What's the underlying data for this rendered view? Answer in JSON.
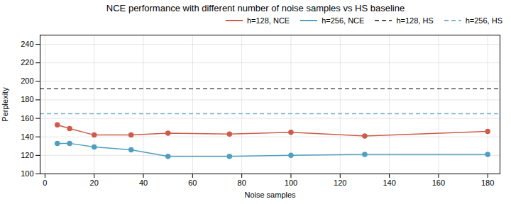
{
  "chart_data": {
    "type": "line",
    "title": "NCE performance with different number of noise samples vs HS baseline",
    "xlabel": "Noise samples",
    "ylabel": "Perplexity",
    "xlim": [
      -2,
      185
    ],
    "ylim": [
      100,
      250
    ],
    "xticks": [
      0,
      20,
      40,
      60,
      80,
      100,
      120,
      140,
      160,
      180
    ],
    "yticks": [
      100,
      120,
      140,
      160,
      180,
      200,
      220,
      240
    ],
    "x": [
      5,
      10,
      20,
      35,
      50,
      75,
      100,
      130,
      180
    ],
    "series": [
      {
        "name": "h=128, NCE",
        "color": "#cd5c4a",
        "marker": "o",
        "line_style": "solid",
        "values": [
          153,
          149,
          142,
          142,
          144,
          143,
          145,
          141,
          146
        ]
      },
      {
        "name": "h=256, NCE",
        "color": "#4f9fbe",
        "marker": "o",
        "line_style": "solid",
        "values": [
          133,
          133,
          129,
          126,
          119,
          119,
          120,
          121,
          121
        ]
      },
      {
        "name": "h=128, HS",
        "type": "hline",
        "color": "#555555",
        "line_style": "dashed",
        "y": 192
      },
      {
        "name": "h=256, HS",
        "type": "hline",
        "color": "#7ab0cc",
        "line_style": "dashed",
        "y": 165
      }
    ],
    "grid": true,
    "legend": "upper right"
  }
}
